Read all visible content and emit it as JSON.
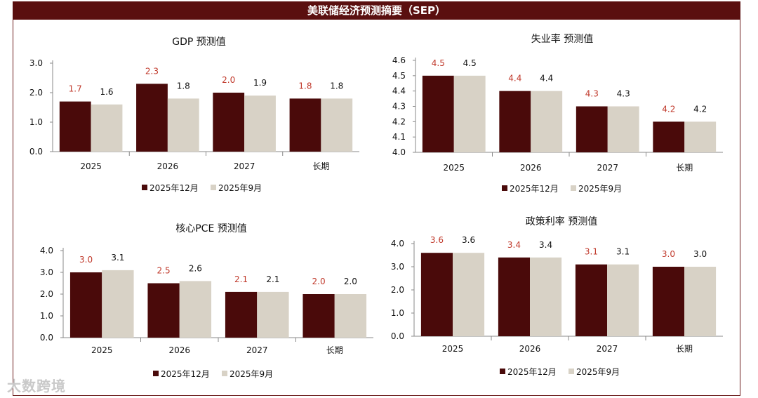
{
  "page_title": "美联储经济预测摘要（SEP）",
  "watermark": "大数跨境",
  "colors": {
    "dec": "#4a0a0a",
    "sep": "#d8d2c6",
    "dec_label": "#c0392b",
    "sep_label": "#111111",
    "header_bg": "#5a0f0f"
  },
  "chart_data": [
    {
      "id": "gdp",
      "type": "bar",
      "title": "GDP 预测值",
      "categories": [
        "2025",
        "2026",
        "2027",
        "长期"
      ],
      "series": [
        {
          "name": "2025年12月",
          "values": [
            1.7,
            2.3,
            2.0,
            1.8
          ]
        },
        {
          "name": "2025年9月",
          "values": [
            1.6,
            1.8,
            1.9,
            1.8
          ]
        }
      ],
      "ylim": [
        0,
        3.0
      ],
      "yticks": [
        "0.0",
        "1.0",
        "2.0",
        "3.0"
      ],
      "ytick_values": [
        0,
        1,
        2,
        3
      ],
      "legend_position": "bottom"
    },
    {
      "id": "unemp",
      "type": "bar",
      "title": "失业率 预测值",
      "categories": [
        "2025",
        "2026",
        "2027",
        "长期"
      ],
      "series": [
        {
          "name": "2025年12月",
          "values": [
            4.5,
            4.4,
            4.3,
            4.2
          ]
        },
        {
          "name": "2025年9月",
          "values": [
            4.5,
            4.4,
            4.3,
            4.2
          ]
        }
      ],
      "ylim": [
        4.0,
        4.6
      ],
      "yticks": [
        "4.0",
        "4.1",
        "4.2",
        "4.3",
        "4.4",
        "4.5",
        "4.6"
      ],
      "ytick_values": [
        4.0,
        4.1,
        4.2,
        4.3,
        4.4,
        4.5,
        4.6
      ],
      "legend_position": "bottom"
    },
    {
      "id": "pce",
      "type": "bar",
      "title": "核心PCE 预测值",
      "categories": [
        "2025",
        "2026",
        "2027",
        "长期"
      ],
      "series": [
        {
          "name": "2025年12月",
          "values": [
            3.0,
            2.5,
            2.1,
            2.0
          ]
        },
        {
          "name": "2025年9月",
          "values": [
            3.1,
            2.6,
            2.1,
            2.0
          ]
        }
      ],
      "ylim": [
        0,
        4.0
      ],
      "yticks": [
        "0.0",
        "1.0",
        "2.0",
        "3.0",
        "4.0"
      ],
      "ytick_values": [
        0,
        1,
        2,
        3,
        4
      ],
      "legend_position": "bottom"
    },
    {
      "id": "rate",
      "type": "bar",
      "title": "政策利率 预测值",
      "categories": [
        "2025",
        "2026",
        "2027",
        "长期"
      ],
      "series": [
        {
          "name": "2025年12月",
          "values": [
            3.6,
            3.4,
            3.1,
            3.0
          ]
        },
        {
          "name": "2025年9月",
          "values": [
            3.6,
            3.4,
            3.1,
            3.0
          ]
        }
      ],
      "ylim": [
        0,
        4.0
      ],
      "yticks": [
        "0.0",
        "1.0",
        "2.0",
        "3.0",
        "4.0"
      ],
      "ytick_values": [
        0,
        1,
        2,
        3,
        4
      ],
      "legend_position": "bottom"
    }
  ]
}
